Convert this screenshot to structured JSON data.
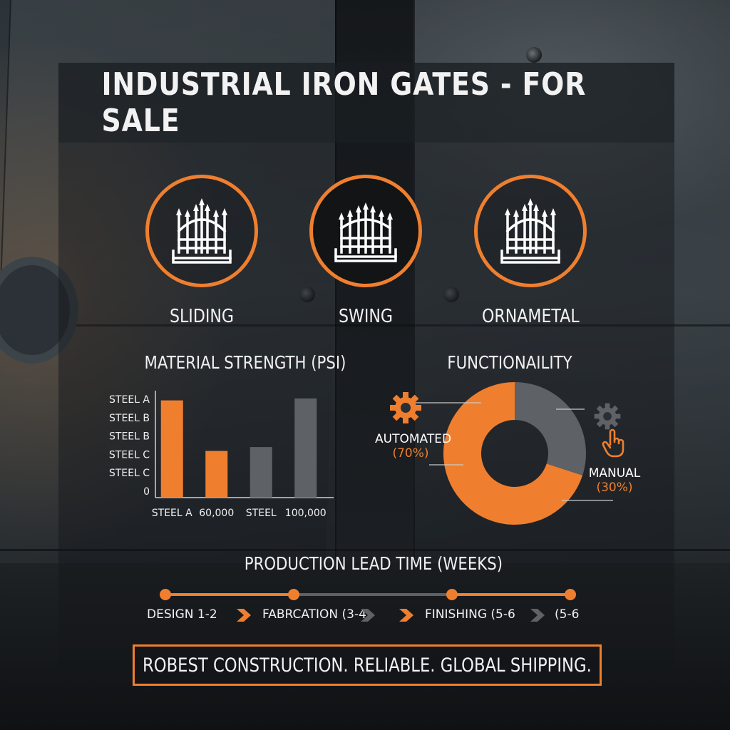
{
  "title": "INDUSTRIAL IRON GATES - FOR SALE",
  "accent_color": "#ef7f2e",
  "gray_color": "#5e6165",
  "gates": [
    {
      "label": "SLIDING",
      "icon": "ornate-gate-icon"
    },
    {
      "label": "SWING",
      "icon": "arched-gate-icon"
    },
    {
      "label": "ORNAMETAL",
      "icon": "ornate-gate-icon"
    }
  ],
  "strength": {
    "heading": "MATERIAL STRENGTH (PSI)"
  },
  "function": {
    "heading": "FUNCTIONAILITY"
  },
  "chart_data": [
    {
      "type": "bar",
      "title": "MATERIAL STRENGTH (PSI)",
      "y_tick_labels": [
        "STEEL A",
        "STEEL B",
        "STEEL B",
        "STEEL C",
        "STEEL C",
        "0"
      ],
      "categories": [
        "STEEL A",
        "60,000",
        "STEEL",
        "100,000"
      ],
      "values": [
        100,
        48,
        52,
        102
      ],
      "bar_colors": [
        "#ef7f2e",
        "#ef7f2e",
        "#5e6165",
        "#5e6165"
      ],
      "ylim": [
        0,
        110
      ],
      "grid": false
    },
    {
      "type": "pie",
      "title": "FUNCTIONAILITY",
      "donut": true,
      "slices": [
        {
          "label": "AUTOMATED",
          "pct_label": "(70%)",
          "value": 70,
          "color": "#ef7f2e",
          "icon": "gear-icon"
        },
        {
          "label": "MANUAL",
          "pct_label": "(30%)",
          "value": 30,
          "color": "#5e6165",
          "icon": "hand-pointer-icon"
        }
      ]
    }
  ],
  "timeline": {
    "heading": "PRODUCTION LEAD TIME (WEEKS)",
    "steps": [
      "DESIGN 1-2",
      "FABRCATION (3-4",
      "FINISHING (5-6",
      "(5-6"
    ]
  },
  "footer": "ROBEST CONSTRUCTION. RELIABLE. GLOBAL SHIPPING."
}
